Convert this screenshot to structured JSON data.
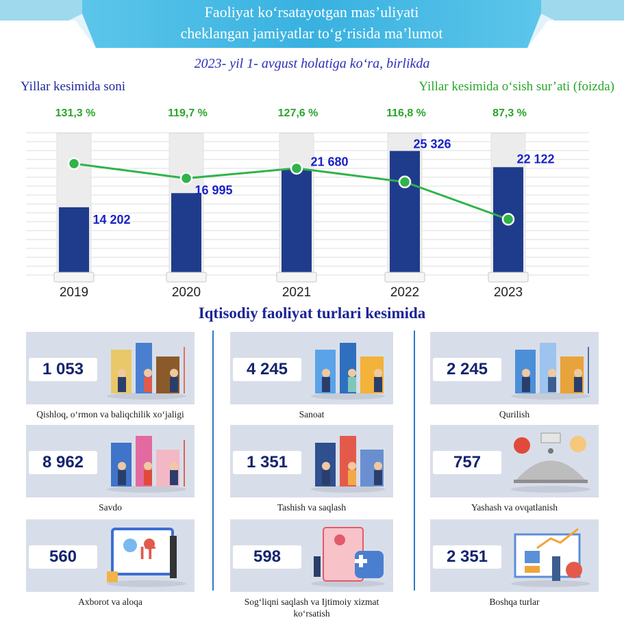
{
  "header": {
    "title_line1": "Faoliyat ko‘rsatayotgan mas’uliyati",
    "title_line2": "cheklangan jamiyatlar to‘g‘risida ma’lumot",
    "subtitle": "2023- yil 1- avgust holatiga ko‘ra, birlikda",
    "legend_count": "Yillar kesimida soni",
    "legend_growth": "Yillar kesimida o‘sish sur’ati (foizda)"
  },
  "colors": {
    "banner": "#3ab3e0",
    "bar_fill": "#1f3c8c",
    "bar_ghost": "#ececec",
    "line": "#2fb34a",
    "value_text": "#1a22c8",
    "growth_text": "#2aa52a",
    "card_bg": "#d8dee9",
    "divider": "#2e78c4"
  },
  "chart_data": {
    "type": "bar",
    "categories": [
      "2019",
      "2020",
      "2021",
      "2022",
      "2023"
    ],
    "series": [
      {
        "name": "Yillar kesimida soni",
        "type": "bar",
        "values": [
          14202,
          16995,
          21680,
          25326,
          22122
        ],
        "labels": [
          "14 202",
          "16 995",
          "21 680",
          "25 326",
          "22 122"
        ]
      },
      {
        "name": "Yillar kesimida o‘sish sur’ati (foizda)",
        "type": "line",
        "values": [
          131.3,
          119.7,
          127.6,
          116.8,
          87.3
        ],
        "labels": [
          "131,3 %",
          "119,7 %",
          "127,6 %",
          "116,8 %",
          "87,3 %"
        ]
      }
    ],
    "bar_ylim": [
      0,
      30000
    ],
    "line_ylim": [
      40,
      160
    ],
    "grid": true
  },
  "sections": {
    "title": "Iqtisodiy faoliyat turlari kesimida",
    "items": [
      {
        "value": "1 053",
        "label": "Qishloq, o‘rmon va baliqchilik xo‘jaligi",
        "icon": "agriculture-illustration"
      },
      {
        "value": "4 245",
        "label": "Sanoat",
        "icon": "industry-illustration"
      },
      {
        "value": "2 245",
        "label": "Qurilish",
        "icon": "construction-illustration"
      },
      {
        "value": "8 962",
        "label": "Savdo",
        "icon": "trade-illustration"
      },
      {
        "value": "1 351",
        "label": "Tashish va saqlash",
        "icon": "transport-illustration"
      },
      {
        "value": "757",
        "label": "Yashash va ovqatlanish",
        "icon": "hospitality-illustration"
      },
      {
        "value": "560",
        "label": "Axborot va aloqa",
        "icon": "it-illustration"
      },
      {
        "value": "598",
        "label": "Sog‘liqni saqlash va Ijtimoiy xizmat ko‘rsatish",
        "icon": "healthcare-illustration"
      },
      {
        "value": "2 351",
        "label": "Boshqa turlar",
        "icon": "other-illustration"
      }
    ]
  }
}
